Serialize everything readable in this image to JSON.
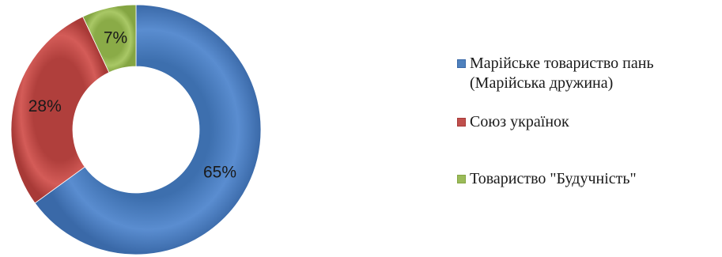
{
  "chart_data": {
    "type": "pie",
    "variant": "donut",
    "title": "",
    "legend_position": "right",
    "slices": [
      {
        "label": "Марійське товариство пань\n(Марійська дружина)",
        "value": 65,
        "display": "65%",
        "color": "#4f81bd"
      },
      {
        "label": "Союз українок",
        "value": 28,
        "display": "28%",
        "color": "#c0504d"
      },
      {
        "label": "Товариство \"Будучність\"",
        "value": 7,
        "display": "7%",
        "color": "#9bbb59"
      }
    ]
  }
}
